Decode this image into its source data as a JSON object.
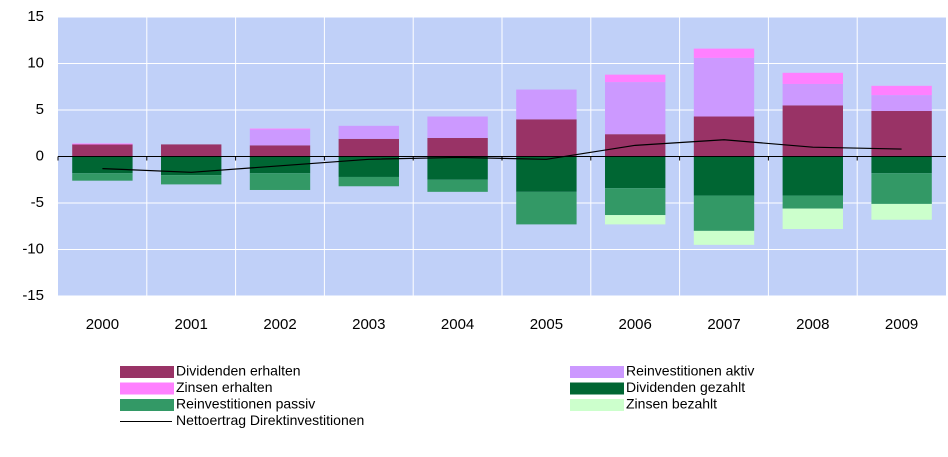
{
  "chart_data": {
    "type": "bar",
    "stacked": true,
    "categories": [
      "2000",
      "2001",
      "2002",
      "2003",
      "2004",
      "2005",
      "2006",
      "2007",
      "2008",
      "2009"
    ],
    "ylim": [
      -15,
      15
    ],
    "yticks": [
      -15,
      -10,
      -5,
      0,
      5,
      10,
      15
    ],
    "grid": true,
    "background": "#c0d0f8",
    "series": [
      {
        "name": "Dividenden erhalten",
        "color": "#993366",
        "values": [
          1.3,
          1.3,
          1.2,
          1.9,
          2.0,
          4.0,
          2.4,
          4.3,
          5.5,
          4.9
        ]
      },
      {
        "name": "Reinvestitionen aktiv",
        "color": "#cc99ff",
        "values": [
          0,
          0,
          1.7,
          1.4,
          2.3,
          3.2,
          5.6,
          6.3,
          2.3,
          1.7
        ]
      },
      {
        "name": "Zinsen erhalten",
        "color": "#ff80ff",
        "values": [
          0.1,
          0,
          0.1,
          0,
          0,
          0,
          0.8,
          1.0,
          1.2,
          1.0
        ]
      },
      {
        "name": "Dividenden gezahlt",
        "color": "#006633",
        "values": [
          -1.8,
          -2.0,
          -1.8,
          -2.2,
          -2.5,
          -3.8,
          -3.4,
          -4.2,
          -4.2,
          -1.8
        ]
      },
      {
        "name": "Reinvestitionen passiv",
        "color": "#339966",
        "values": [
          -0.8,
          -1.0,
          -1.8,
          -1.0,
          -1.3,
          -3.5,
          -2.9,
          -3.8,
          -1.4,
          -3.3
        ]
      },
      {
        "name": "Zinsen bezahlt",
        "color": "#ccffcc",
        "values": [
          0,
          0,
          0,
          0,
          0,
          0,
          -1.0,
          -1.5,
          -2.2,
          -1.7
        ]
      },
      {
        "name": "Nettoertrag Direktinvestitionen",
        "color": "#000000",
        "type": "line",
        "values": [
          -1.3,
          -1.7,
          -1.0,
          -0.3,
          -0.1,
          -0.3,
          1.2,
          1.8,
          1.0,
          0.8
        ]
      }
    ]
  }
}
